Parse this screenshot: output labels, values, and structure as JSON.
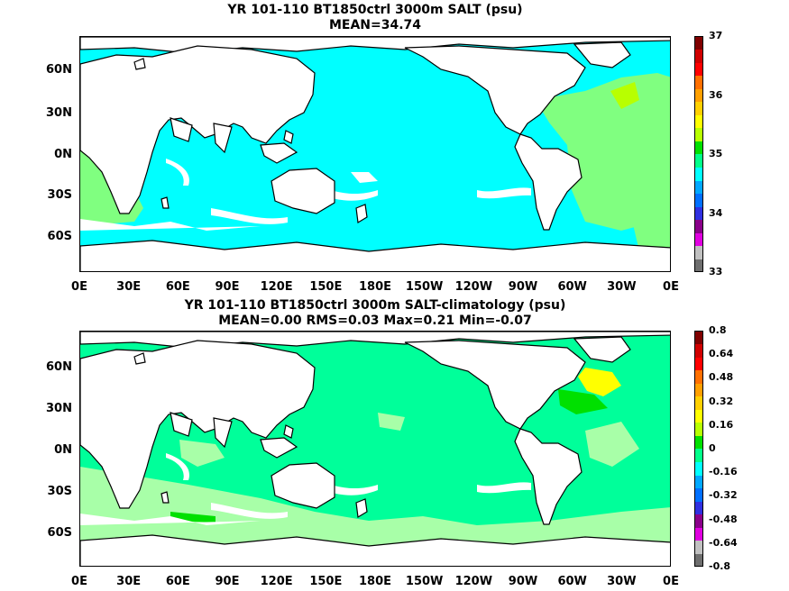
{
  "panels": [
    {
      "title_line1": "YR 101-110 BT1850ctrl 3000m SALT (psu)",
      "title_line2": "MEAN=34.74",
      "colorbar": {
        "colors": [
          "#6e6e6e",
          "#c0c0c0",
          "#e000e0",
          "#8a008a",
          "#3030e0",
          "#0070ff",
          "#00a8ff",
          "#00ffff",
          "#00ff8a",
          "#00e000",
          "#b8ff00",
          "#ffff00",
          "#ffd000",
          "#ffa000",
          "#ff7000",
          "#ff0000",
          "#d00000",
          "#800000"
        ],
        "tick_labels": [
          "37",
          "36",
          "35",
          "34",
          "33"
        ]
      },
      "palette": {
        "main": "#00ffff",
        "secondary": "#80ff80",
        "tertiary": "#b8ff00"
      }
    },
    {
      "title_line1": "YR 101-110 BT1850ctrl 3000m SALT-climatology (psu)",
      "title_line2": "MEAN=0.00   RMS=0.03   Max=0.21   Min=-0.07",
      "colorbar": {
        "colors": [
          "#6e6e6e",
          "#c0c0c0",
          "#e000e0",
          "#8a008a",
          "#3030e0",
          "#0070ff",
          "#00a8ff",
          "#00ffff",
          "#00ff8a",
          "#00e000",
          "#b8ff00",
          "#ffff00",
          "#ffd000",
          "#ffa000",
          "#ff7000",
          "#ff0000",
          "#d00000",
          "#800000"
        ],
        "tick_labels": [
          "0.8",
          "0.64",
          "0.48",
          "0.32",
          "0.16",
          "0",
          "-0.16",
          "-0.32",
          "-0.48",
          "-0.64",
          "-0.8"
        ]
      },
      "palette": {
        "main": "#00ff9a",
        "secondary": "#a8ffa8",
        "tertiary": "#ffff00"
      }
    }
  ],
  "lat_labels": [
    "60N",
    "30N",
    "0N",
    "30S",
    "60S"
  ],
  "lon_labels": [
    "0E",
    "30E",
    "60E",
    "90E",
    "120E",
    "150E",
    "180E",
    "150W",
    "120W",
    "90W",
    "60W",
    "30W",
    "0E"
  ]
}
